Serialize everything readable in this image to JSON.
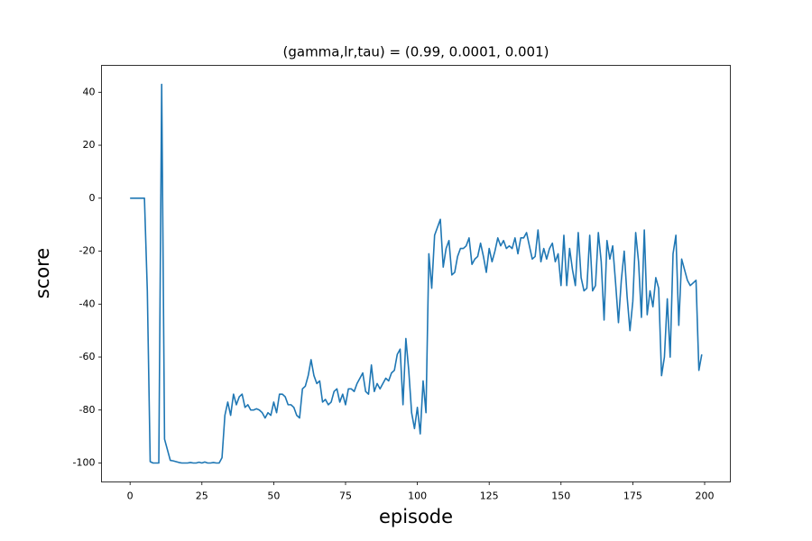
{
  "chart_data": {
    "type": "line",
    "title": "(gamma,lr,tau) = (0.99, 0.0001, 0.001)",
    "xlabel": "episode",
    "ylabel": "score",
    "x": [
      0,
      1,
      2,
      3,
      4,
      5,
      6,
      7,
      8,
      9,
      10,
      11,
      12,
      13,
      14,
      15,
      16,
      17,
      18,
      19,
      20,
      21,
      22,
      23,
      24,
      25,
      26,
      27,
      28,
      29,
      30,
      31,
      32,
      33,
      34,
      35,
      36,
      37,
      38,
      39,
      40,
      41,
      42,
      43,
      44,
      45,
      46,
      47,
      48,
      49,
      50,
      51,
      52,
      53,
      54,
      55,
      56,
      57,
      58,
      59,
      60,
      61,
      62,
      63,
      64,
      65,
      66,
      67,
      68,
      69,
      70,
      71,
      72,
      73,
      74,
      75,
      76,
      77,
      78,
      79,
      80,
      81,
      82,
      83,
      84,
      85,
      86,
      87,
      88,
      89,
      90,
      91,
      92,
      93,
      94,
      95,
      96,
      97,
      98,
      99,
      100,
      101,
      102,
      103,
      104,
      105,
      106,
      107,
      108,
      109,
      110,
      111,
      112,
      113,
      114,
      115,
      116,
      117,
      118,
      119,
      120,
      121,
      122,
      123,
      124,
      125,
      126,
      127,
      128,
      129,
      130,
      131,
      132,
      133,
      134,
      135,
      136,
      137,
      138,
      139,
      140,
      141,
      142,
      143,
      144,
      145,
      146,
      147,
      148,
      149,
      150,
      151,
      152,
      153,
      154,
      155,
      156,
      157,
      158,
      159,
      160,
      161,
      162,
      163,
      164,
      165,
      166,
      167,
      168,
      169,
      170,
      171,
      172,
      173,
      174,
      175,
      176,
      177,
      178,
      179,
      180,
      181,
      182,
      183,
      184,
      185,
      186,
      187,
      188,
      189,
      190,
      191,
      192,
      193,
      194,
      195,
      196,
      197,
      198,
      199
    ],
    "series": [
      {
        "name": "score",
        "color": "#1f77b4",
        "values": [
          0,
          0,
          0,
          0,
          0,
          0,
          -35,
          -99.5,
          -100,
          -100,
          -100,
          43,
          -91,
          -95,
          -99,
          -99.2,
          -99.5,
          -99.8,
          -100,
          -100,
          -100,
          -99.8,
          -100,
          -100,
          -99.7,
          -100,
          -99.6,
          -100,
          -100,
          -99.8,
          -100,
          -100,
          -98,
          -82,
          -77,
          -82,
          -74,
          -78,
          -75,
          -74,
          -79,
          -78,
          -80,
          -80,
          -79.5,
          -80,
          -81,
          -83,
          -81,
          -82,
          -77,
          -81,
          -74,
          -74,
          -75,
          -78,
          -78,
          -79,
          -82,
          -83,
          -72,
          -71,
          -67,
          -61,
          -67,
          -70,
          -69,
          -77,
          -76,
          -78,
          -77,
          -73,
          -72,
          -77,
          -74,
          -78,
          -72,
          -72,
          -73,
          -70,
          -68,
          -66,
          -73,
          -74,
          -63,
          -73,
          -70,
          -72,
          -70,
          -68,
          -69,
          -66,
          -65,
          -59,
          -57,
          -78,
          -53,
          -65,
          -81,
          -87,
          -79,
          -89,
          -69,
          -81,
          -21,
          -34,
          -14,
          -11,
          -8,
          -26,
          -19,
          -16,
          -29,
          -28,
          -22,
          -19,
          -19,
          -18,
          -15,
          -25,
          -23,
          -22,
          -17,
          -22,
          -28,
          -19,
          -24,
          -20,
          -15,
          -18,
          -16,
          -19,
          -18,
          -19,
          -15,
          -21,
          -15,
          -15,
          -13,
          -18,
          -23,
          -22,
          -12,
          -24,
          -19,
          -23,
          -19,
          -17,
          -24,
          -21,
          -33,
          -14,
          -33,
          -19,
          -27,
          -33,
          -13,
          -30,
          -35,
          -34,
          -14,
          -35,
          -33,
          -13,
          -24,
          -46,
          -16,
          -23,
          -18,
          -32,
          -47,
          -31,
          -20,
          -37,
          -50,
          -39,
          -13,
          -24,
          -45,
          -12,
          -44,
          -35,
          -41,
          -30,
          -34,
          -67,
          -60,
          -38,
          -60,
          -21,
          -14,
          -48,
          -23,
          -27,
          -31,
          -33,
          -32,
          -31,
          -65,
          -59
        ]
      }
    ],
    "xlim": [
      -9.95,
      208.95
    ],
    "xticks": [
      0,
      25,
      50,
      75,
      100,
      125,
      150,
      175,
      200
    ],
    "ylim": [
      -107.15,
      50.15
    ],
    "yticks": [
      -100,
      -80,
      -60,
      -40,
      -20,
      0,
      20,
      40
    ],
    "grid": false
  }
}
